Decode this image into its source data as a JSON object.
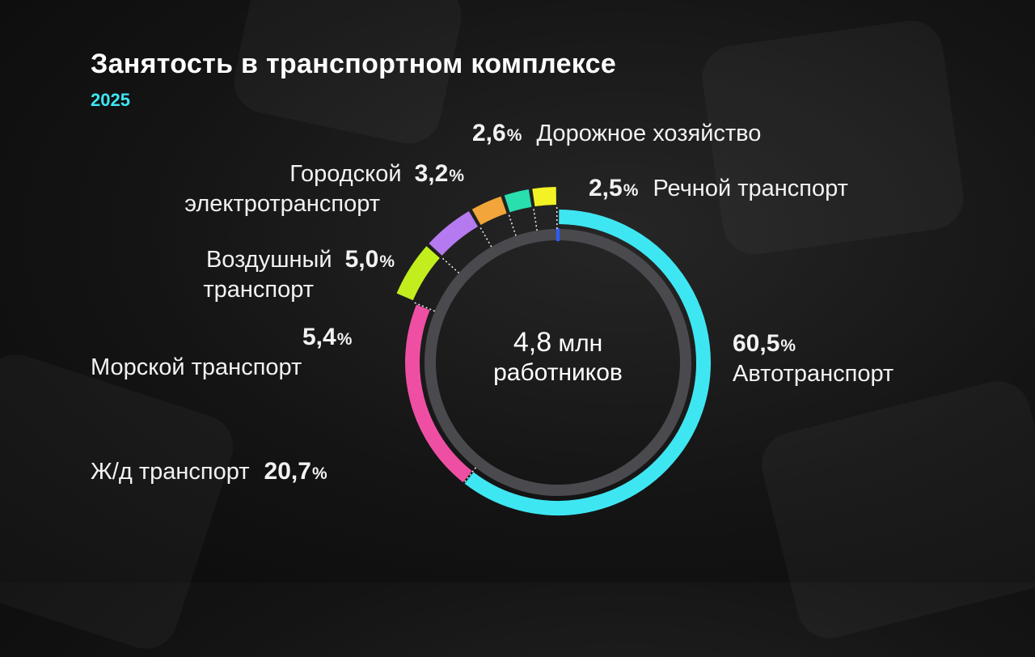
{
  "title": "Занятость в транспортном комплексе",
  "subtitle": "2025",
  "center": {
    "value": "4,8",
    "unit": "млн",
    "label": "работников"
  },
  "colors": {
    "auto": "#3ee6f2",
    "rail": "#ee4fa3",
    "sea": "#c3ee1e",
    "air": "#b57af0",
    "urban": "#f2a53a",
    "road": "#29dfad",
    "river": "#f2f225",
    "inner_ring": "#4a4a4e"
  },
  "chart_data": {
    "type": "pie",
    "categories": [
      "Автотранспорт",
      "Ж/д транспорт",
      "Морской транспорт",
      "Воздушный транспорт",
      "Городской электротранспорт",
      "Дорожное хозяйство",
      "Речной транспорт"
    ],
    "values": [
      60.5,
      20.7,
      5.4,
      5.0,
      3.2,
      2.6,
      2.5
    ],
    "value_labels": [
      "60,5",
      "20,7",
      "5,4",
      "5,0",
      "3,2",
      "2,6",
      "2,5"
    ],
    "unit": "%"
  },
  "labels": {
    "auto_line": "Автотранспорт",
    "rail_line": "Ж/д транспорт",
    "sea_line": "Морской транспорт",
    "air_line1": "Воздушный",
    "air_line2": "транспорт",
    "urban_line1": "Городской",
    "urban_line2": "электротранспорт",
    "road_line": "Дорожное хозяйство",
    "river_line": "Речной транспорт"
  }
}
